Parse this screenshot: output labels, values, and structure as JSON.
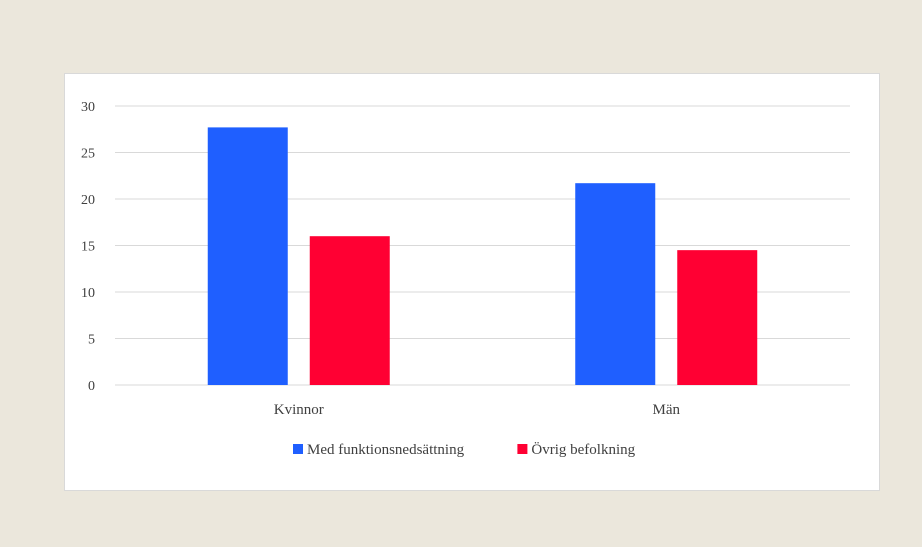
{
  "chart_data": {
    "type": "bar",
    "categories": [
      "Kvinnor",
      "Män"
    ],
    "series": [
      {
        "name": "Med funktionsnedsättning",
        "color": "#1f5fff",
        "values": [
          27.7,
          21.7
        ]
      },
      {
        "name": "Övrig befolkning",
        "color": "#ff0033",
        "values": [
          16.0,
          14.5
        ]
      }
    ],
    "yticks": [
      0,
      5,
      10,
      15,
      20,
      25,
      30
    ],
    "ylim": [
      0,
      30
    ],
    "grid": true,
    "legend_position": "bottom",
    "title": "",
    "xlabel": "",
    "ylabel": ""
  }
}
